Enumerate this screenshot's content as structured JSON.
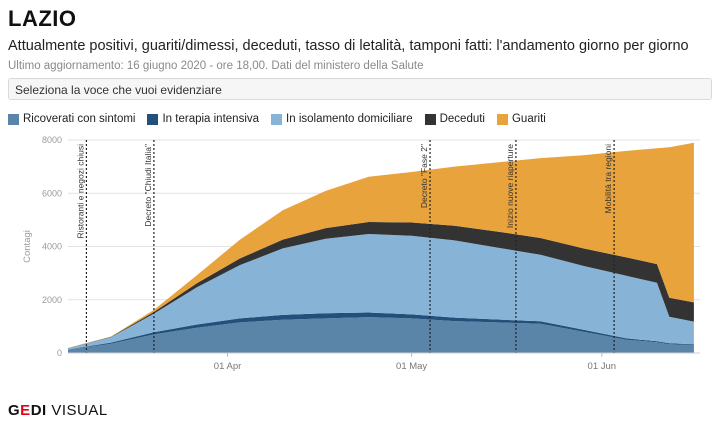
{
  "header": {
    "title": "LAZIO",
    "subtitle": "Attualmente positivi, guariti/dimessi, deceduti, tasso di letalità, tamponi fatti: l'andamento giorno per giorno",
    "updated": "Ultimo aggiornamento: 16 giugno 2020 - ore 18,00. Dati del ministero della Salute"
  },
  "selector": {
    "label": "Seleziona la voce che vuoi evidenziare"
  },
  "legend": [
    {
      "label": "Ricoverati con sintomi",
      "color": "#5a85a8"
    },
    {
      "label": "In terapia intensiva",
      "color": "#23507a"
    },
    {
      "label": "In isolamento domiciliare",
      "color": "#87b3d6"
    },
    {
      "label": "Deceduti",
      "color": "#333333"
    },
    {
      "label": "Guariti",
      "color": "#e8a33d"
    }
  ],
  "logo": {
    "g": "G",
    "e": "E",
    "di": "DI",
    "visual": " VISUAL"
  },
  "chart_data": {
    "type": "area",
    "stacked": true,
    "ylabel": "Contagi",
    "ylim": [
      0,
      8000
    ],
    "yticks": [
      0,
      2000,
      4000,
      6000,
      8000
    ],
    "xlim": [
      "2020-03-06",
      "2020-06-17"
    ],
    "xticks": [
      {
        "date": "2020-04-01",
        "label": "01 Apr"
      },
      {
        "date": "2020-05-01",
        "label": "01 May"
      },
      {
        "date": "2020-06-01",
        "label": "01 Jun"
      }
    ],
    "grid": "horizontal",
    "x": [
      "2020-03-06",
      "2020-03-13",
      "2020-03-20",
      "2020-03-27",
      "2020-04-03",
      "2020-04-10",
      "2020-04-17",
      "2020-04-24",
      "2020-05-01",
      "2020-05-08",
      "2020-05-15",
      "2020-05-22",
      "2020-05-29",
      "2020-06-05",
      "2020-06-10",
      "2020-06-12",
      "2020-06-16"
    ],
    "series": [
      {
        "name": "Ricoverati con sintomi",
        "color": "#5a85a8",
        "values": [
          120,
          350,
          700,
          950,
          1150,
          1250,
          1300,
          1350,
          1300,
          1200,
          1150,
          1100,
          800,
          500,
          400,
          330,
          300
        ]
      },
      {
        "name": "In terapia intensiva",
        "color": "#23507a",
        "values": [
          10,
          40,
          80,
          120,
          150,
          180,
          190,
          170,
          150,
          130,
          110,
          90,
          70,
          50,
          40,
          35,
          30
        ]
      },
      {
        "name": "In isolamento domiciliare",
        "color": "#87b3d6",
        "values": [
          50,
          200,
          700,
          1400,
          2000,
          2500,
          2800,
          2950,
          2950,
          2900,
          2700,
          2500,
          2400,
          2350,
          2200,
          1000,
          850
        ]
      },
      {
        "name": "Deceduti",
        "color": "#333333",
        "values": [
          5,
          15,
          60,
          150,
          250,
          330,
          400,
          450,
          500,
          550,
          600,
          630,
          660,
          690,
          700,
          710,
          720
        ]
      },
      {
        "name": "Guariti",
        "color": "#e8a33d",
        "values": [
          5,
          15,
          80,
          300,
          700,
          1100,
          1400,
          1700,
          1900,
          2220,
          2600,
          3000,
          3500,
          4000,
          4350,
          5650,
          6000
        ]
      }
    ],
    "annotations": [
      {
        "date": "2020-03-09",
        "label": "Ristoranti e negozi chiusi"
      },
      {
        "date": "2020-03-20",
        "label": "Decreto \"Chiudi Italia\""
      },
      {
        "date": "2020-05-04",
        "label": "Decreto \"Fase 2\""
      },
      {
        "date": "2020-05-18",
        "label": "Inizio nuove riaperture"
      },
      {
        "date": "2020-06-03",
        "label": "Mobilità tra regioni"
      }
    ]
  }
}
